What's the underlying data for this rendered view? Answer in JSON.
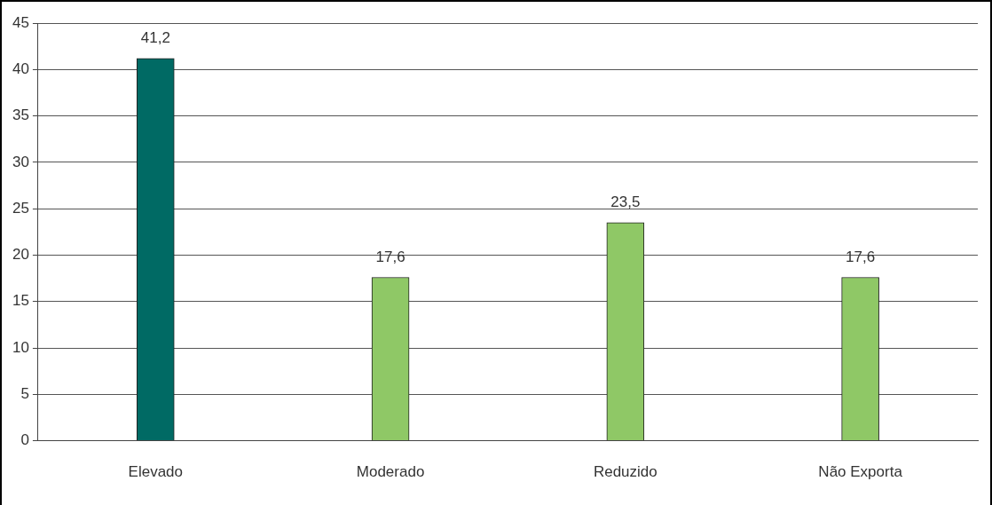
{
  "chart_data": {
    "type": "bar",
    "categories": [
      "Elevado",
      "Moderado",
      "Reduzido",
      "Não Exporta"
    ],
    "values": [
      41.2,
      17.6,
      23.5,
      17.6
    ],
    "colors": [
      "#006a64",
      "#8fc866",
      "#8fc866",
      "#8fc866"
    ],
    "value_labels": [
      "41,2",
      "17,6",
      "23,5",
      "17,6"
    ],
    "ylim": [
      0,
      45
    ],
    "yticks": [
      0,
      5,
      10,
      15,
      20,
      25,
      30,
      35,
      40,
      45
    ],
    "grid": "y",
    "legend": false
  }
}
